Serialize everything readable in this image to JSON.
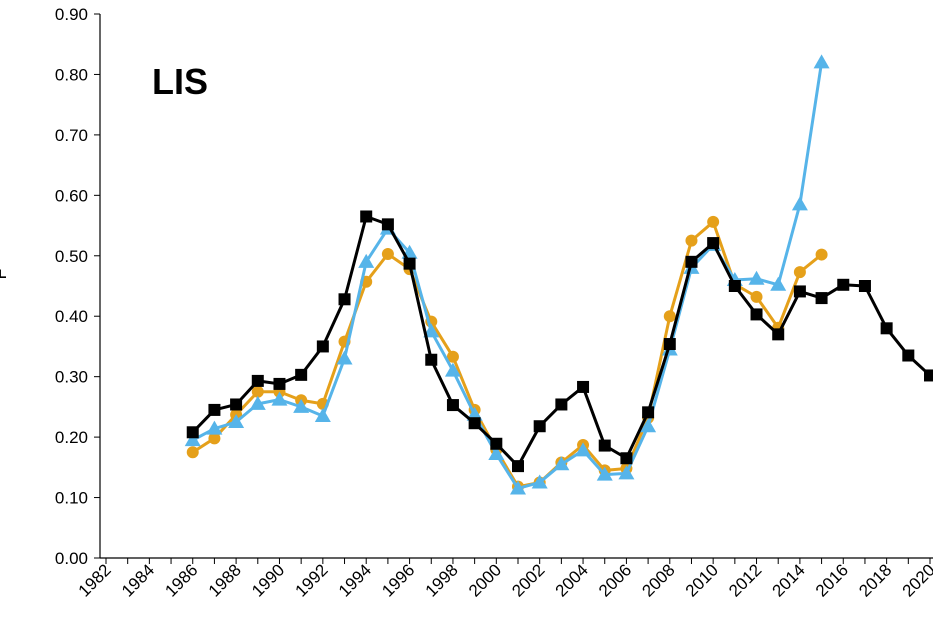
{
  "chart_data": {
    "type": "line",
    "title": "LIS",
    "xlabel": "",
    "ylabel": "F",
    "xlim": [
      1982,
      2020
    ],
    "ylim": [
      0,
      0.9
    ],
    "x_ticks": [
      1982,
      1984,
      1986,
      1988,
      1990,
      1992,
      1994,
      1996,
      1998,
      2000,
      2002,
      2004,
      2006,
      2008,
      2010,
      2012,
      2014,
      2016,
      2018,
      2020
    ],
    "y_ticks": [
      "0.00",
      "0.10",
      "0.20",
      "0.30",
      "0.40",
      "0.50",
      "0.60",
      "0.70",
      "0.80",
      "0.90"
    ],
    "grid": false,
    "legend": "none",
    "series": [
      {
        "color": "#E5A01A",
        "marker": "circle",
        "x": [
          1986,
          1987,
          1988,
          1989,
          1990,
          1991,
          1992,
          1993,
          1994,
          1995,
          1996,
          1997,
          1998,
          1999,
          2000,
          2001,
          2002,
          2003,
          2004,
          2005,
          2006,
          2007,
          2008,
          2009,
          2010,
          2011,
          2012,
          2013,
          2014,
          2015
        ],
        "values": [
          0.175,
          0.198,
          0.237,
          0.275,
          0.275,
          0.261,
          0.255,
          0.358,
          0.457,
          0.503,
          0.478,
          0.391,
          0.333,
          0.245,
          0.179,
          0.118,
          0.125,
          0.158,
          0.187,
          0.145,
          0.148,
          0.232,
          0.4,
          0.525,
          0.556,
          0.453,
          0.432,
          0.381,
          0.473,
          0.502
        ]
      },
      {
        "color": "#56B4E9",
        "marker": "triangle",
        "x": [
          1986,
          1987,
          1988,
          1989,
          1990,
          1991,
          1992,
          1993,
          1994,
          1995,
          1996,
          1997,
          1998,
          1999,
          2000,
          2001,
          2002,
          2003,
          2004,
          2005,
          2006,
          2007,
          2008,
          2009,
          2010,
          2011,
          2012,
          2013,
          2014,
          2015
        ],
        "values": [
          0.195,
          0.214,
          0.225,
          0.255,
          0.262,
          0.25,
          0.235,
          0.33,
          0.49,
          0.545,
          0.505,
          0.375,
          0.31,
          0.237,
          0.172,
          0.115,
          0.125,
          0.155,
          0.178,
          0.138,
          0.14,
          0.218,
          0.345,
          0.48,
          0.518,
          0.46,
          0.462,
          0.452,
          0.585,
          0.82
        ]
      },
      {
        "color": "#000000",
        "marker": "square",
        "x": [
          1986,
          1987,
          1988,
          1989,
          1990,
          1991,
          1992,
          1993,
          1994,
          1995,
          1996,
          1997,
          1998,
          1999,
          2000,
          2001,
          2002,
          2003,
          2004,
          2005,
          2006,
          2007,
          2008,
          2009,
          2010,
          2011,
          2012,
          2013,
          2014,
          2015,
          2016,
          2017,
          2018,
          2019,
          2020
        ],
        "values": [
          0.208,
          0.245,
          0.254,
          0.293,
          0.288,
          0.303,
          0.35,
          0.428,
          0.565,
          0.552,
          0.487,
          0.328,
          0.253,
          0.223,
          0.189,
          0.152,
          0.218,
          0.254,
          0.283,
          0.186,
          0.165,
          0.241,
          0.354,
          0.49,
          0.521,
          0.45,
          0.403,
          0.37,
          0.441,
          0.43,
          0.452,
          0.45,
          0.38,
          0.335,
          0.302
        ]
      }
    ]
  }
}
